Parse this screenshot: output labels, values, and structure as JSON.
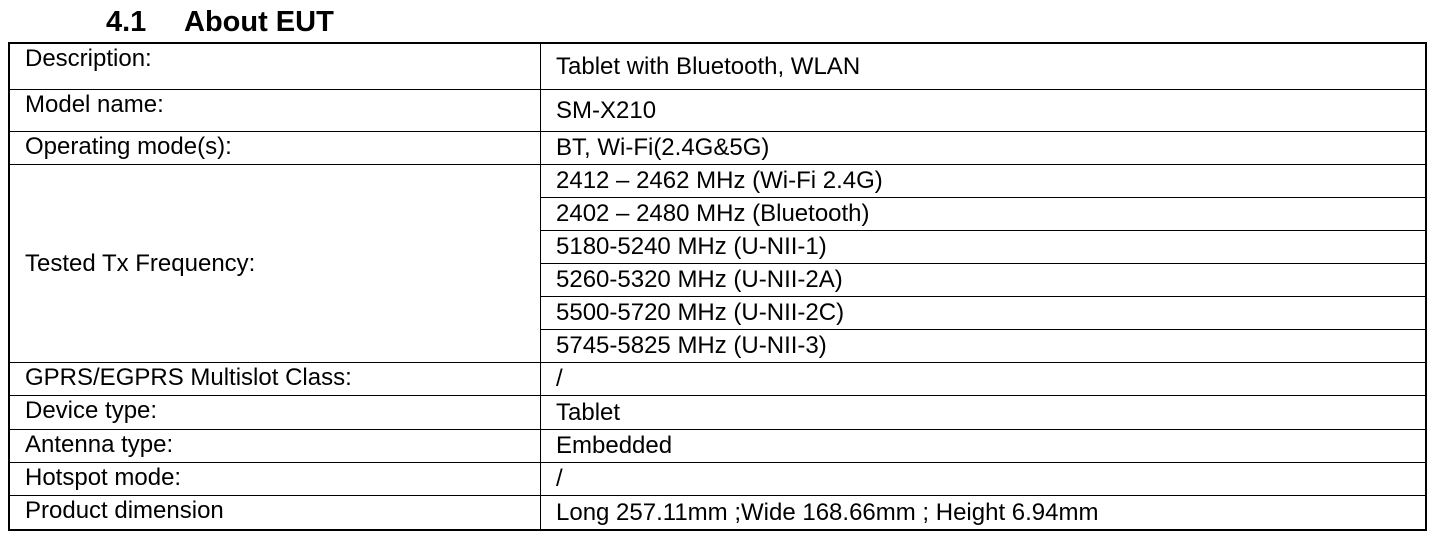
{
  "heading": {
    "number": "4.1",
    "title": "About EUT"
  },
  "table": {
    "rows": [
      {
        "label": "Description:",
        "value": "Tablet with Bluetooth, WLAN"
      },
      {
        "label": "Model name:",
        "value": "SM-X210"
      },
      {
        "label": "Operating mode(s):",
        "value": "BT, Wi-Fi(2.4G&5G)"
      },
      {
        "label": "Tested Tx Frequency:",
        "values": [
          "2412 – 2462 MHz (Wi-Fi 2.4G)",
          "2402 – 2480 MHz (Bluetooth)",
          "5180-5240 MHz (U-NII-1)",
          "5260-5320 MHz (U-NII-2A)",
          "5500-5720 MHz (U-NII-2C)",
          "5745-5825 MHz (U-NII-3)"
        ]
      },
      {
        "label": "GPRS/EGPRS Multislot Class:",
        "value": "/"
      },
      {
        "label": "Device type:",
        "value": "Tablet"
      },
      {
        "label": "Antenna type:",
        "value": "Embedded"
      },
      {
        "label": "Hotspot mode:",
        "value": "/"
      },
      {
        "label": "Product dimension",
        "value": "Long 257.11mm ;Wide 168.66mm ; Height 6.94mm"
      }
    ]
  }
}
